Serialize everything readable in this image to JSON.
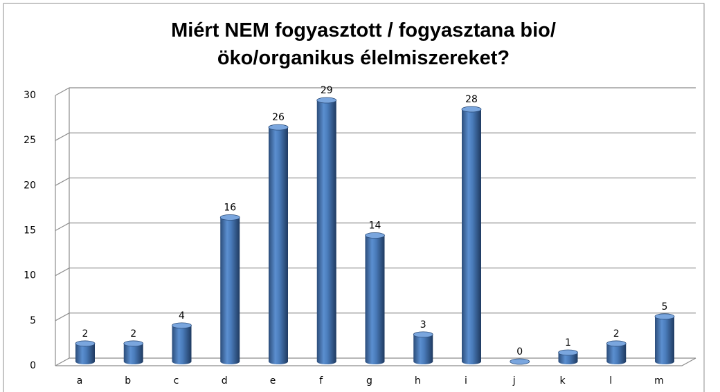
{
  "chart_data": {
    "type": "bar",
    "title": "Miért NEM fogyasztott / fogyasztana bio/öko/organikus élelmiszereket?",
    "categories": [
      "a",
      "b",
      "c",
      "d",
      "e",
      "f",
      "g",
      "h",
      "i",
      "j",
      "k",
      "l",
      "m"
    ],
    "values": [
      2,
      2,
      4,
      16,
      26,
      29,
      14,
      3,
      28,
      0,
      1,
      2,
      5
    ],
    "color": "#4f81bd",
    "ylim": [
      0,
      30
    ],
    "yticks": [
      0,
      5,
      10,
      15,
      20,
      25,
      30
    ],
    "grid": true
  }
}
